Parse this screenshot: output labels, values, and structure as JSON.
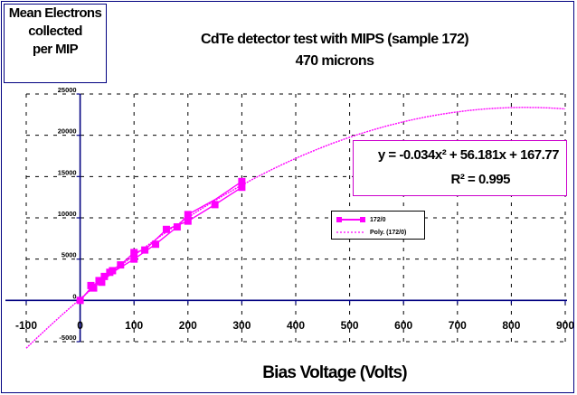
{
  "chart_data": {
    "type": "scatter",
    "title": [
      "CdTe detector test with MIPS (sample  172)",
      "470 microns"
    ],
    "xlabel": "Bias Voltage (Volts)",
    "ylabel": [
      "Mean Electrons",
      "collected",
      "per MIP"
    ],
    "xlim": [
      -100,
      900
    ],
    "ylim": [
      -5000,
      25000
    ],
    "x_ticks": [
      -100,
      0,
      100,
      200,
      300,
      400,
      500,
      600,
      700,
      800,
      900
    ],
    "x_tick_labels": [
      "-100",
      "0",
      "100",
      "200",
      "300",
      "400",
      "500",
      "600",
      "700",
      "800",
      "900"
    ],
    "y_ticks": [
      -5000,
      0,
      5000,
      10000,
      15000,
      20000,
      25000
    ],
    "y_tick_labels": [
      "-5000",
      "0",
      "5000",
      "10000",
      "15000",
      "20000",
      "25000"
    ],
    "grid": true,
    "legend_position": "center-right",
    "series": [
      {
        "name": "172/0",
        "color": "#ff00ff",
        "marker": "square",
        "points": [
          [
            0,
            0
          ],
          [
            20,
            1800
          ],
          [
            25,
            1500
          ],
          [
            35,
            2400
          ],
          [
            40,
            2200
          ],
          [
            45,
            2900
          ],
          [
            55,
            3400
          ],
          [
            60,
            3600
          ],
          [
            75,
            4300
          ],
          [
            100,
            5000
          ],
          [
            100,
            5800
          ],
          [
            120,
            6100
          ],
          [
            140,
            6800
          ],
          [
            160,
            8600
          ],
          [
            180,
            8900
          ],
          [
            200,
            9600
          ],
          [
            200,
            10400
          ],
          [
            250,
            11600
          ],
          [
            300,
            13700
          ],
          [
            300,
            14400
          ]
        ],
        "path_points": [
          [
            0,
            0
          ],
          [
            20,
            1500
          ],
          [
            40,
            2200
          ],
          [
            60,
            3400
          ],
          [
            100,
            5000
          ],
          [
            140,
            6800
          ],
          [
            180,
            8900
          ],
          [
            200,
            10400
          ],
          [
            250,
            12200
          ],
          [
            300,
            14400
          ],
          [
            300,
            13700
          ],
          [
            250,
            11600
          ],
          [
            200,
            9600
          ],
          [
            160,
            8600
          ],
          [
            120,
            6100
          ],
          [
            100,
            5800
          ],
          [
            75,
            4300
          ],
          [
            55,
            3600
          ],
          [
            45,
            2900
          ],
          [
            35,
            2400
          ],
          [
            25,
            1800
          ],
          [
            0,
            0
          ]
        ]
      },
      {
        "name": "Poly. (172/0)",
        "color": "#ff00ff",
        "line_style": "dashed",
        "fit": "polynomial",
        "coefficients": [
          -0.034,
          56.181,
          167.77
        ],
        "x_range": [
          -100,
          900
        ]
      }
    ],
    "annotations": {
      "equation": "y = -0.034x² + 56.181x + 167.77",
      "r_squared": "R² = 0.995"
    }
  }
}
